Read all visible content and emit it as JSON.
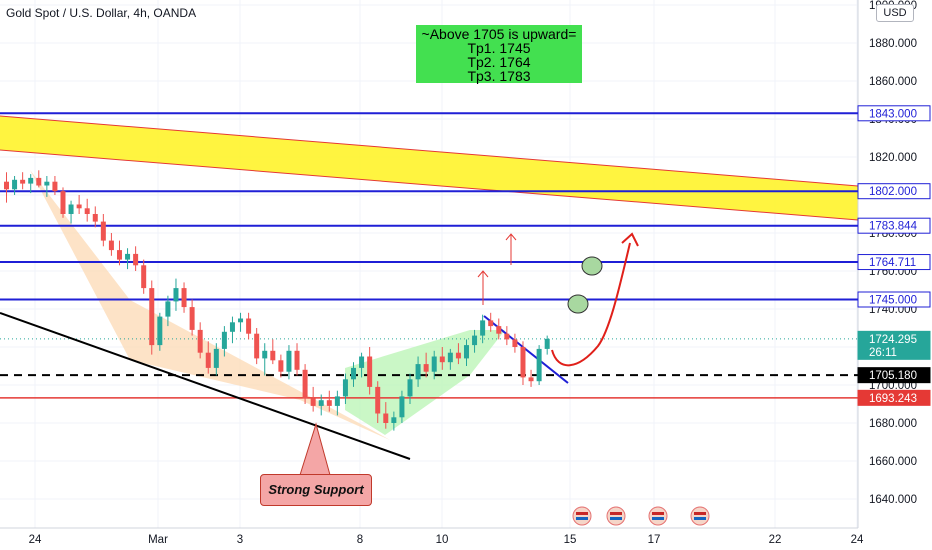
{
  "title": "Gold Spot / U.S. Dollar, 4h, OANDA",
  "currency_button": "USD",
  "note": {
    "line1": "~Above 1705 is upward=",
    "line2": "Tp1. 1745",
    "line3": "Tp2. 1764",
    "line4": "Tp3. 1783"
  },
  "callout": "Strong Support",
  "colors": {
    "up": "#26a69a",
    "down": "#ef5350",
    "level_line": "#1f1fd6",
    "support_line": "#e53935",
    "channel_fill": "#fff21f",
    "channel_border": "#e53935",
    "current": "#26a69a",
    "note_bg": "#43e050",
    "wedge_down": "#fcd9b4",
    "wedge_up": "#bdf5b8"
  },
  "chart_data": {
    "type": "candlestick",
    "y_axis": {
      "ticks": [
        "1900.000",
        "1880.000",
        "1860.000",
        "1840.000",
        "1820.000",
        "1800.000",
        "1780.000",
        "1760.000",
        "1740.000",
        "1720.000",
        "1700.000",
        "1680.000",
        "1660.000",
        "1640.000"
      ],
      "range": [
        1632,
        1902
      ]
    },
    "x_axis": {
      "ticks": [
        "24",
        "Mar",
        "3",
        "8",
        "10",
        "15",
        "17",
        "22",
        "24"
      ]
    },
    "price_labels": [
      {
        "value": 1843.0,
        "text": "1843.000",
        "style": "blue"
      },
      {
        "value": 1802.0,
        "text": "1802.000",
        "style": "blue"
      },
      {
        "value": 1783.844,
        "text": "1783.844",
        "style": "blue"
      },
      {
        "value": 1764.711,
        "text": "1764.711",
        "style": "blue"
      },
      {
        "value": 1745.0,
        "text": "1745.000",
        "style": "blue"
      },
      {
        "value": 1724.295,
        "text": "1724.295",
        "sub": "26:11",
        "style": "current"
      },
      {
        "value": 1705.18,
        "text": "1705.180",
        "style": "black"
      },
      {
        "value": 1693.243,
        "text": "1693.243",
        "style": "red"
      }
    ],
    "levels": [
      1843.0,
      1802.0,
      1783.844,
      1764.711,
      1745.0
    ],
    "dashed_level": 1705.18,
    "support_level": 1693.243,
    "candles": [
      {
        "o": 1807,
        "h": 1812,
        "l": 1796,
        "c": 1803
      },
      {
        "o": 1803,
        "h": 1810,
        "l": 1800,
        "c": 1808
      },
      {
        "o": 1808,
        "h": 1812,
        "l": 1803,
        "c": 1806
      },
      {
        "o": 1806,
        "h": 1811,
        "l": 1801,
        "c": 1809
      },
      {
        "o": 1809,
        "h": 1813,
        "l": 1804,
        "c": 1805
      },
      {
        "o": 1805,
        "h": 1810,
        "l": 1799,
        "c": 1807
      },
      {
        "o": 1807,
        "h": 1810,
        "l": 1800,
        "c": 1802
      },
      {
        "o": 1802,
        "h": 1804,
        "l": 1788,
        "c": 1790
      },
      {
        "o": 1790,
        "h": 1797,
        "l": 1785,
        "c": 1795
      },
      {
        "o": 1795,
        "h": 1800,
        "l": 1790,
        "c": 1793
      },
      {
        "o": 1793,
        "h": 1798,
        "l": 1786,
        "c": 1790
      },
      {
        "o": 1790,
        "h": 1794,
        "l": 1783,
        "c": 1786
      },
      {
        "o": 1786,
        "h": 1790,
        "l": 1773,
        "c": 1776
      },
      {
        "o": 1776,
        "h": 1780,
        "l": 1768,
        "c": 1771
      },
      {
        "o": 1771,
        "h": 1776,
        "l": 1763,
        "c": 1766
      },
      {
        "o": 1766,
        "h": 1772,
        "l": 1761,
        "c": 1769
      },
      {
        "o": 1769,
        "h": 1773,
        "l": 1760,
        "c": 1763
      },
      {
        "o": 1763,
        "h": 1766,
        "l": 1748,
        "c": 1751
      },
      {
        "o": 1751,
        "h": 1755,
        "l": 1716,
        "c": 1721
      },
      {
        "o": 1721,
        "h": 1738,
        "l": 1718,
        "c": 1736
      },
      {
        "o": 1736,
        "h": 1747,
        "l": 1731,
        "c": 1744
      },
      {
        "o": 1744,
        "h": 1756,
        "l": 1739,
        "c": 1751
      },
      {
        "o": 1751,
        "h": 1754,
        "l": 1738,
        "c": 1741
      },
      {
        "o": 1741,
        "h": 1745,
        "l": 1726,
        "c": 1729
      },
      {
        "o": 1729,
        "h": 1733,
        "l": 1714,
        "c": 1717
      },
      {
        "o": 1717,
        "h": 1723,
        "l": 1706,
        "c": 1709
      },
      {
        "o": 1709,
        "h": 1722,
        "l": 1705,
        "c": 1719
      },
      {
        "o": 1719,
        "h": 1731,
        "l": 1715,
        "c": 1728
      },
      {
        "o": 1728,
        "h": 1736,
        "l": 1722,
        "c": 1733
      },
      {
        "o": 1733,
        "h": 1738,
        "l": 1728,
        "c": 1735
      },
      {
        "o": 1735,
        "h": 1738,
        "l": 1724,
        "c": 1727
      },
      {
        "o": 1727,
        "h": 1730,
        "l": 1711,
        "c": 1714
      },
      {
        "o": 1714,
        "h": 1722,
        "l": 1705,
        "c": 1718
      },
      {
        "o": 1718,
        "h": 1724,
        "l": 1711,
        "c": 1713
      },
      {
        "o": 1713,
        "h": 1716,
        "l": 1704,
        "c": 1707
      },
      {
        "o": 1707,
        "h": 1721,
        "l": 1703,
        "c": 1718
      },
      {
        "o": 1718,
        "h": 1722,
        "l": 1705,
        "c": 1708
      },
      {
        "o": 1708,
        "h": 1711,
        "l": 1690,
        "c": 1693
      },
      {
        "o": 1693,
        "h": 1699,
        "l": 1686,
        "c": 1689
      },
      {
        "o": 1689,
        "h": 1695,
        "l": 1684,
        "c": 1692
      },
      {
        "o": 1692,
        "h": 1697,
        "l": 1686,
        "c": 1689
      },
      {
        "o": 1689,
        "h": 1697,
        "l": 1684,
        "c": 1694
      },
      {
        "o": 1694,
        "h": 1706,
        "l": 1690,
        "c": 1703
      },
      {
        "o": 1703,
        "h": 1712,
        "l": 1699,
        "c": 1709
      },
      {
        "o": 1709,
        "h": 1717,
        "l": 1704,
        "c": 1715
      },
      {
        "o": 1715,
        "h": 1720,
        "l": 1695,
        "c": 1699
      },
      {
        "o": 1699,
        "h": 1702,
        "l": 1680,
        "c": 1685
      },
      {
        "o": 1685,
        "h": 1691,
        "l": 1677,
        "c": 1680
      },
      {
        "o": 1680,
        "h": 1686,
        "l": 1676,
        "c": 1683
      },
      {
        "o": 1683,
        "h": 1697,
        "l": 1680,
        "c": 1694
      },
      {
        "o": 1694,
        "h": 1706,
        "l": 1690,
        "c": 1703
      },
      {
        "o": 1703,
        "h": 1715,
        "l": 1699,
        "c": 1711
      },
      {
        "o": 1711,
        "h": 1717,
        "l": 1704,
        "c": 1707
      },
      {
        "o": 1707,
        "h": 1718,
        "l": 1703,
        "c": 1715
      },
      {
        "o": 1715,
        "h": 1720,
        "l": 1708,
        "c": 1712
      },
      {
        "o": 1712,
        "h": 1719,
        "l": 1708,
        "c": 1717
      },
      {
        "o": 1717,
        "h": 1722,
        "l": 1711,
        "c": 1714
      },
      {
        "o": 1714,
        "h": 1724,
        "l": 1710,
        "c": 1721
      },
      {
        "o": 1721,
        "h": 1729,
        "l": 1717,
        "c": 1726
      },
      {
        "o": 1726,
        "h": 1737,
        "l": 1722,
        "c": 1734
      },
      {
        "o": 1734,
        "h": 1738,
        "l": 1728,
        "c": 1731
      },
      {
        "o": 1731,
        "h": 1735,
        "l": 1724,
        "c": 1727
      },
      {
        "o": 1727,
        "h": 1731,
        "l": 1721,
        "c": 1724
      },
      {
        "o": 1724,
        "h": 1727,
        "l": 1717,
        "c": 1720
      },
      {
        "o": 1720,
        "h": 1723,
        "l": 1700,
        "c": 1704
      },
      {
        "o": 1704,
        "h": 1708,
        "l": 1699,
        "c": 1702
      },
      {
        "o": 1702,
        "h": 1721,
        "l": 1700,
        "c": 1719
      },
      {
        "o": 1719,
        "h": 1726,
        "l": 1716,
        "c": 1724.3
      }
    ]
  }
}
